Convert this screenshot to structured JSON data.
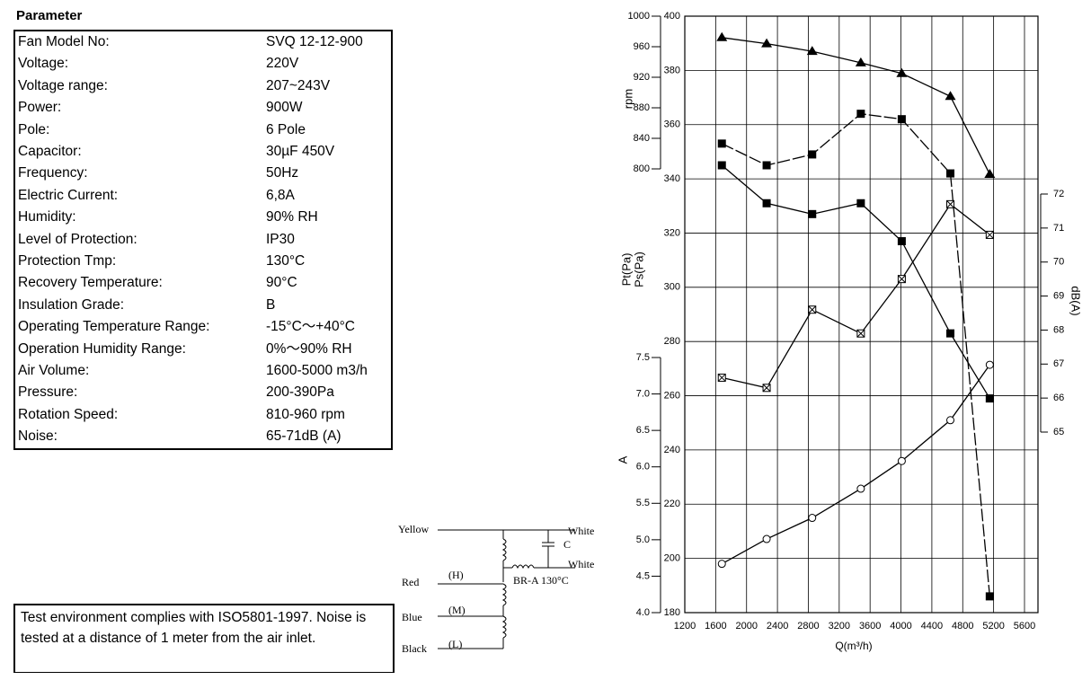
{
  "table": {
    "title": "Parameter",
    "rows": [
      [
        "Fan Model No:",
        "SVQ 12-12-900"
      ],
      [
        "Voltage:",
        "220V"
      ],
      [
        "Voltage range:",
        "207~243V"
      ],
      [
        "Power:",
        "900W"
      ],
      [
        "Pole:",
        "6 Pole"
      ],
      [
        "Capacitor:",
        "30µF 450V"
      ],
      [
        "Frequency:",
        "50Hz"
      ],
      [
        "Electric Current:",
        "6,8A"
      ],
      [
        "Humidity:",
        "90% RH"
      ],
      [
        "Level of Protection:",
        "IP30"
      ],
      [
        "Protection Tmp:",
        "130°C"
      ],
      [
        "Recovery Temperature:",
        "90°C"
      ],
      [
        "Insulation Grade:",
        "B"
      ],
      [
        "Operating Temperature Range:",
        "-15°C～+40°C"
      ],
      [
        "Operation Humidity Range:",
        "0%～90% RH"
      ],
      [
        "Air Volume:",
        "1600-5000 m3/h"
      ],
      [
        "Pressure:",
        "200-390Pa"
      ],
      [
        "Rotation Speed:",
        "810-960 rpm"
      ],
      [
        "Noise:",
        "65-71dB (A)"
      ]
    ]
  },
  "note": "Test environment complies with ISO5801-1997. Noise is tested at a distance of 1 meter from the air inlet.",
  "wiring": {
    "leads": [
      "Yellow",
      "Red",
      "Blue",
      "Black"
    ],
    "taps": [
      "(H)",
      "(M)",
      "(L)"
    ],
    "white": [
      "White",
      "White"
    ],
    "capacitor": "C",
    "protector": "BR-A 130°C"
  },
  "chart_data": {
    "type": "line",
    "x": [
      1680,
      2260,
      2850,
      3480,
      4010,
      4640,
      5150
    ],
    "xlabel": "Q(m³/h)",
    "xlim": [
      1200,
      5600
    ],
    "xticks": [
      1200,
      1600,
      2000,
      2400,
      2800,
      3200,
      3600,
      4000,
      4400,
      4800,
      5200,
      5600
    ],
    "ylim": [
      180,
      400
    ],
    "yticks": [
      180,
      200,
      220,
      240,
      260,
      280,
      300,
      320,
      340,
      360,
      380,
      400
    ],
    "y2lim": [
      800,
      1000
    ],
    "y2ticks": [
      800,
      840,
      880,
      920,
      960,
      1000
    ],
    "y3lim": [
      4,
      7.5
    ],
    "y3ticks": [
      {
        "value": 4,
        "label": "4.0"
      },
      4.5,
      {
        "value": 5,
        "label": "5.0"
      },
      5.5,
      {
        "value": 6,
        "label": "6.0"
      },
      6.5,
      {
        "value": 7,
        "label": "7.0"
      },
      7.5
    ],
    "y4lim": [
      65,
      72
    ],
    "y4ticks": [
      65,
      66,
      67,
      68,
      69,
      70,
      71,
      72
    ],
    "grid": true,
    "series": [
      {
        "name": "rpm",
        "axis": "y2",
        "marker": "triangle",
        "color": "#000000",
        "values": [
          972,
          964,
          954,
          939,
          925,
          895,
          793
        ]
      },
      {
        "name": "Pt(Pa)",
        "axis": "y",
        "marker": "square",
        "color": "#000000",
        "values": [
          353,
          345,
          349,
          364,
          362,
          342,
          186
        ]
      },
      {
        "name": "Ps(Pa)",
        "axis": "y",
        "marker": "square",
        "color": "#000000",
        "values": [
          345,
          331,
          327,
          331,
          317,
          283,
          259
        ]
      },
      {
        "name": "A",
        "axis": "y3",
        "marker": "circle",
        "color": "#000000",
        "values": [
          4.67,
          5.01,
          5.3,
          5.7,
          6.08,
          6.64,
          7.4
        ]
      },
      {
        "name": "dB(A)",
        "axis": "y4",
        "marker": "crossed-square",
        "color": "#000000",
        "values": [
          66.6,
          66.3,
          68.6,
          67.9,
          69.5,
          71.7,
          70.8
        ]
      }
    ]
  }
}
